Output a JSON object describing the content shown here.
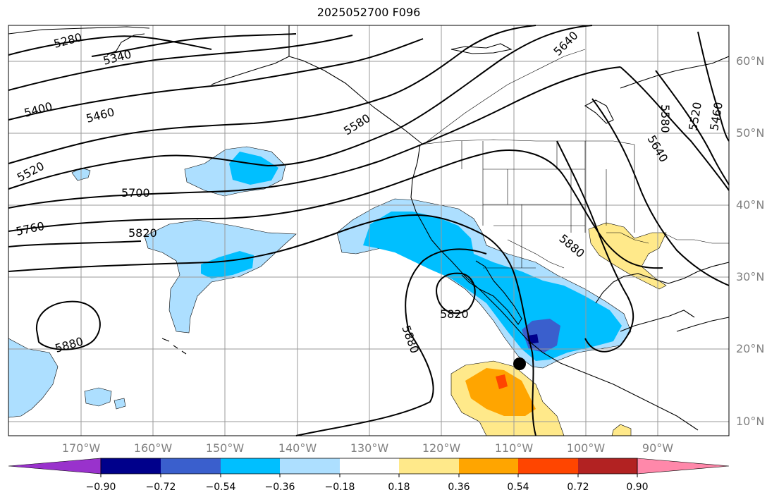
{
  "title": "2025052700 F096",
  "lat_labels": [
    "60°N",
    "50°N",
    "40°N",
    "30°N",
    "20°N",
    "10°N"
  ],
  "lon_labels": [
    "170°W",
    "160°W",
    "150°W",
    "140°W",
    "130°W",
    "120°W",
    "110°W",
    "100°W",
    "90°W"
  ],
  "contour_labels": [
    "5280",
    "5340",
    "5400",
    "5460",
    "5520",
    "5580",
    "5640",
    "5700",
    "5760",
    "5820",
    "5880",
    "5820",
    "5880",
    "5880",
    "5580",
    "5640",
    "5520",
    "5460"
  ],
  "colorbar": {
    "ticks": [
      "−0.90",
      "−0.72",
      "−0.54",
      "−0.36",
      "−0.18",
      "0.18",
      "0.36",
      "0.54",
      "0.72",
      "0.90"
    ],
    "colors": [
      "#9932CC",
      "#00008B",
      "#3A5FCD",
      "#00BFFF",
      "#ADDFFF",
      "#FFFFFF",
      "#FFE98A",
      "#FFA500",
      "#FF4500",
      "#B22222",
      "#FF88AA"
    ]
  },
  "marker": "storm-center-dot"
}
